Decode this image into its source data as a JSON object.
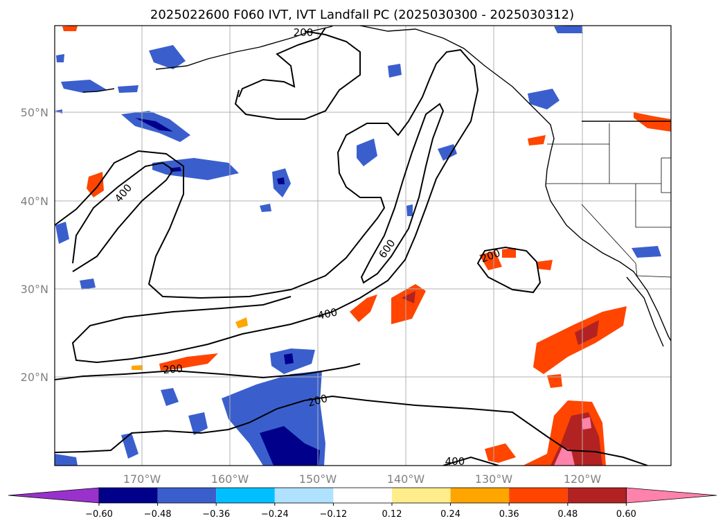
{
  "title": "2025022600 F060 IVT, IVT Landfall PC (2025030300 - 2025030312)",
  "map": {
    "lat_labels": [
      "50°N",
      "40°N",
      "30°N",
      "20°N"
    ],
    "lon_labels": [
      "170°W",
      "160°W",
      "150°W",
      "140°W",
      "130°W",
      "120°W"
    ],
    "gridlines": true,
    "land_fill": "none",
    "coast_color": "#000000",
    "grid_color": "#b0b0b0"
  },
  "contours": {
    "color": "#000000",
    "labels": [
      "200",
      "400",
      "400",
      "600",
      "200",
      "200",
      "200",
      "400",
      "200"
    ]
  },
  "colorbar": {
    "ticks": [
      "−0.60",
      "−0.48",
      "−0.36",
      "−0.24",
      "−0.12",
      "0.12",
      "0.24",
      "0.36",
      "0.48",
      "0.60"
    ],
    "colors": [
      "#9932cc",
      "#00008b",
      "#3a5fcd",
      "#00bfff",
      "#b0e2ff",
      "#ffffff",
      "#ffec8b",
      "#ffa500",
      "#ff4500",
      "#b22222",
      "#ff82ab"
    ]
  }
}
